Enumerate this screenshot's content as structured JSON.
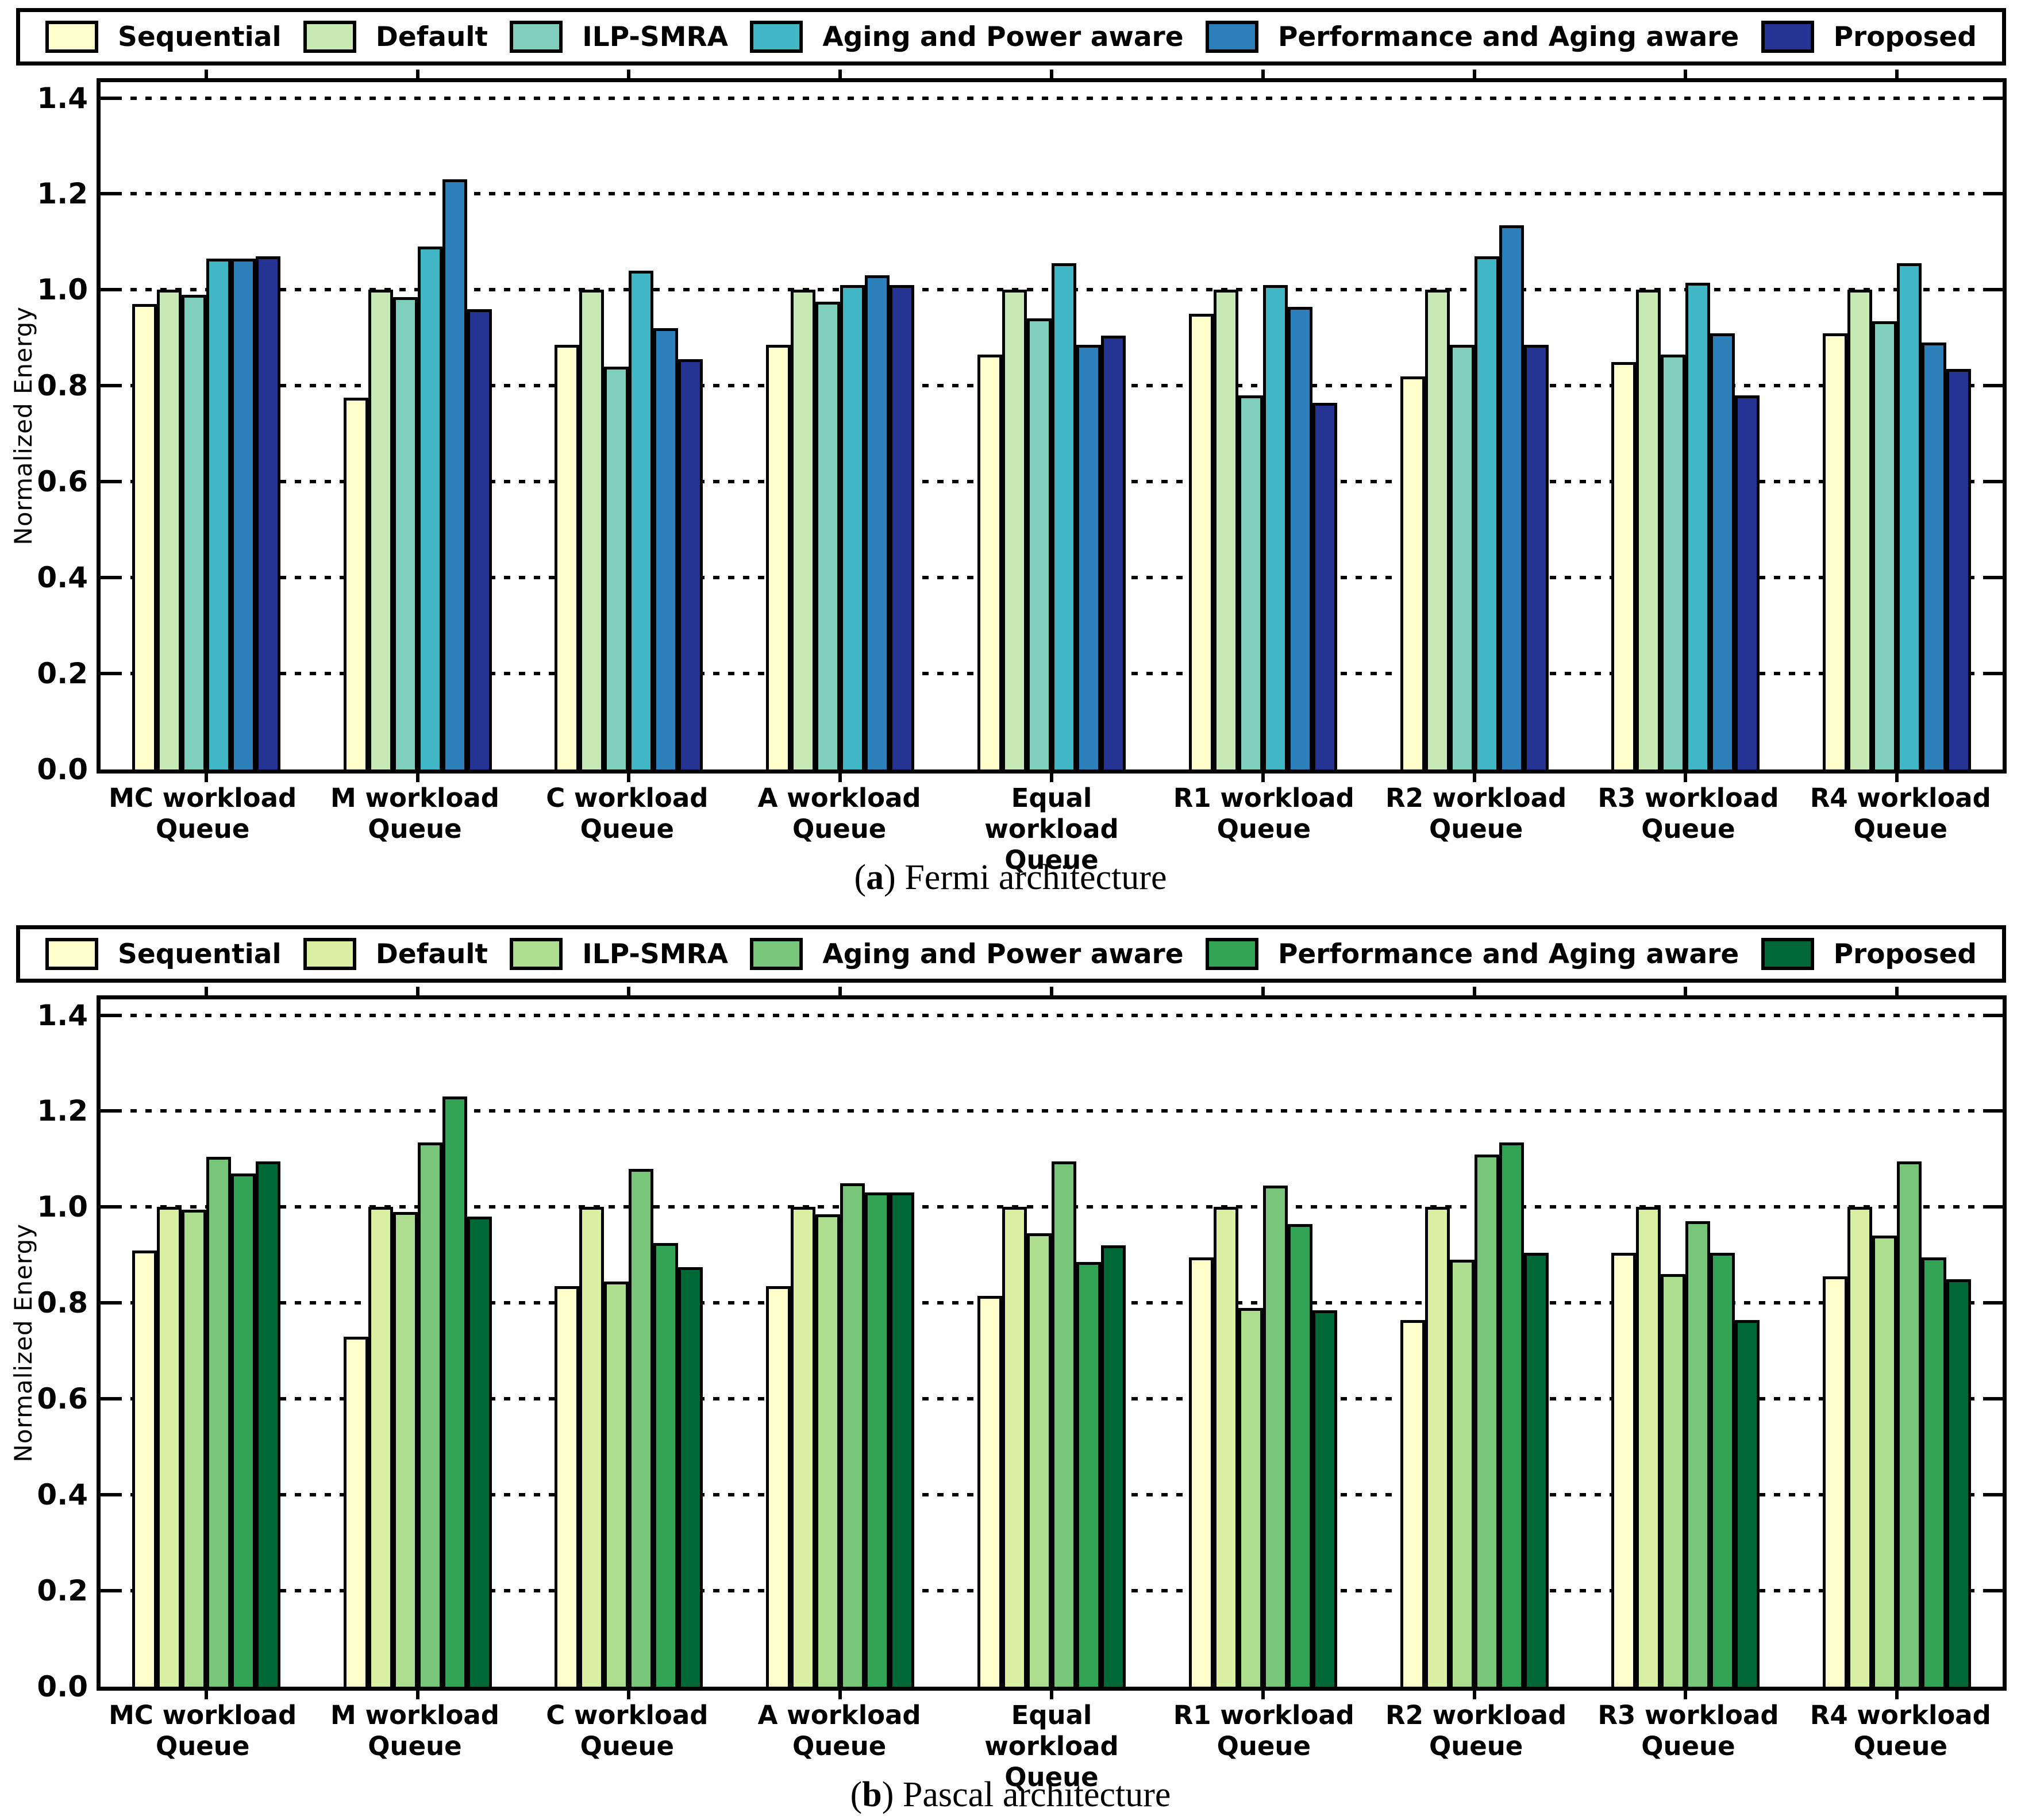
{
  "page": {
    "background": "#ffffff"
  },
  "chart_data": [
    {
      "id": "fermi",
      "type": "bar",
      "caption": {
        "open": "(",
        "letter": "a",
        "close": ")",
        "title": "Fermi architecture"
      },
      "ylabel": "Normalized Energy",
      "ylim": [
        0,
        1.4
      ],
      "yticks": [
        0.0,
        0.2,
        0.4,
        0.6,
        0.8,
        1.0,
        1.2,
        1.4
      ],
      "grid": "dotted-horizontal",
      "legend_position": "top",
      "categories": [
        [
          "MC workload",
          "Queue"
        ],
        [
          "M workload",
          "Queue"
        ],
        [
          "C workload",
          "Queue"
        ],
        [
          "A workload",
          "Queue"
        ],
        [
          "Equal workload",
          "Queue"
        ],
        [
          "R1 workload",
          "Queue"
        ],
        [
          "R2 workload",
          "Queue"
        ],
        [
          "R3 workload",
          "Queue"
        ],
        [
          "R4 workload",
          "Queue"
        ]
      ],
      "series": [
        {
          "name": "Sequential",
          "color": "#ffffcc",
          "values": [
            0.97,
            0.775,
            0.885,
            0.885,
            0.865,
            0.95,
            0.82,
            0.85,
            0.91
          ]
        },
        {
          "name": "Default",
          "color": "#c7e9b4",
          "values": [
            1.0,
            1.0,
            1.0,
            1.0,
            1.0,
            1.0,
            1.0,
            1.0,
            1.0
          ]
        },
        {
          "name": "ILP-SMRA",
          "color": "#7fcdbb",
          "values": [
            0.99,
            0.985,
            0.84,
            0.975,
            0.94,
            0.78,
            0.885,
            0.865,
            0.935
          ]
        },
        {
          "name": "Aging and Power aware",
          "color": "#41b6c4",
          "values": [
            1.065,
            1.09,
            1.04,
            1.01,
            1.055,
            1.01,
            1.07,
            1.015,
            1.055
          ]
        },
        {
          "name": "Performance and Aging aware",
          "color": "#2c7fb8",
          "values": [
            1.065,
            1.23,
            0.92,
            1.03,
            0.885,
            0.965,
            1.135,
            0.91,
            0.89
          ]
        },
        {
          "name": "Proposed",
          "color": "#253494",
          "values": [
            1.07,
            0.96,
            0.855,
            1.01,
            0.905,
            0.765,
            0.885,
            0.78,
            0.835
          ]
        }
      ]
    },
    {
      "id": "pascal",
      "type": "bar",
      "caption": {
        "open": "(",
        "letter": "b",
        "close": ")",
        "title": "Pascal architecture"
      },
      "ylabel": "Normalized Energy",
      "ylim": [
        0,
        1.4
      ],
      "yticks": [
        0.0,
        0.2,
        0.4,
        0.6,
        0.8,
        1.0,
        1.2,
        1.4
      ],
      "grid": "dotted-horizontal",
      "legend_position": "top",
      "categories": [
        [
          "MC workload",
          "Queue"
        ],
        [
          "M workload",
          "Queue"
        ],
        [
          "C workload",
          "Queue"
        ],
        [
          "A workload",
          "Queue"
        ],
        [
          "Equal workload",
          "Queue"
        ],
        [
          "R1 workload",
          "Queue"
        ],
        [
          "R2 workload",
          "Queue"
        ],
        [
          "R3 workload",
          "Queue"
        ],
        [
          "R4 workload",
          "Queue"
        ]
      ],
      "series": [
        {
          "name": "Sequential",
          "color": "#ffffcc",
          "values": [
            0.91,
            0.73,
            0.835,
            0.835,
            0.815,
            0.895,
            0.765,
            0.905,
            0.855
          ]
        },
        {
          "name": "Default",
          "color": "#d9f0a3",
          "values": [
            1.0,
            1.0,
            1.0,
            1.0,
            1.0,
            1.0,
            1.0,
            1.0,
            1.0
          ]
        },
        {
          "name": "ILP-SMRA",
          "color": "#addd8e",
          "values": [
            0.995,
            0.99,
            0.845,
            0.985,
            0.945,
            0.79,
            0.89,
            0.86,
            0.94
          ]
        },
        {
          "name": "Aging and Power aware",
          "color": "#78c679",
          "values": [
            1.105,
            1.135,
            1.08,
            1.05,
            1.095,
            1.045,
            1.11,
            0.97,
            1.095
          ]
        },
        {
          "name": "Performance and Aging aware",
          "color": "#31a354",
          "values": [
            1.07,
            1.23,
            0.925,
            1.03,
            0.885,
            0.965,
            1.135,
            0.905,
            0.895
          ]
        },
        {
          "name": "Proposed",
          "color": "#006837",
          "values": [
            1.095,
            0.98,
            0.875,
            1.03,
            0.92,
            0.785,
            0.905,
            0.765,
            0.85
          ]
        }
      ]
    }
  ]
}
